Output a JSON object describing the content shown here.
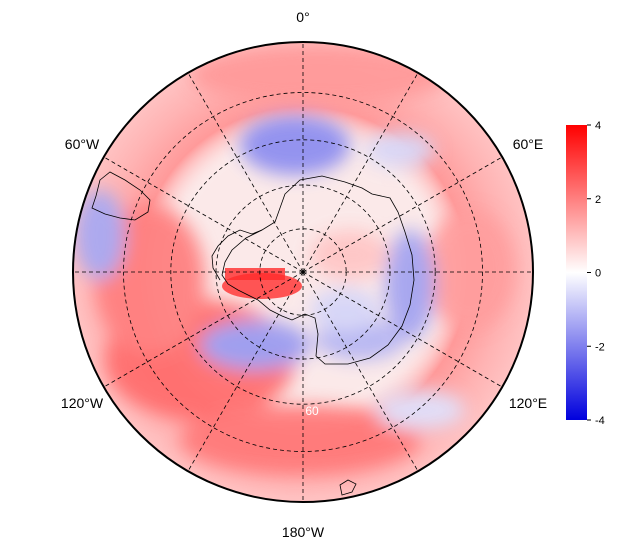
{
  "map": {
    "projection": "south-polar-stereographic",
    "meridian_labels": {
      "top": "0°",
      "upper_left": "60°W",
      "upper_right": "60°E",
      "lower_left": "120°W",
      "lower_right": "120°E",
      "bottom": "180°W"
    },
    "ring_labels": [
      "",
      "60"
    ],
    "meridian_angles_deg": [
      0,
      30,
      60,
      90,
      120,
      150,
      180,
      210,
      240,
      270,
      300,
      330
    ],
    "latitude_rings_deg": [
      -80,
      -70,
      -60,
      -50
    ],
    "outer_latitude_deg": -40,
    "colors": {
      "positive": "#ff0000",
      "negative": "#0000dd",
      "zero": "#ffffff",
      "frame": "#000000",
      "grid": "#000000",
      "coast": "#000000"
    },
    "anomaly_regions": [
      {
        "name": "ring-40-50-pos",
        "value": 1.6
      },
      {
        "name": "pacific-pos",
        "value": 2.5
      },
      {
        "name": "atlantic-neg",
        "value": -1.6
      },
      {
        "name": "ross-neg",
        "value": -1.8
      },
      {
        "name": "east-antarctic-ring-neg",
        "value": -1.4
      },
      {
        "name": "peninsula-pos",
        "value": 3.2
      },
      {
        "name": "indian-pos",
        "value": 1.8
      }
    ]
  },
  "colorbar": {
    "min": -4,
    "max": 4,
    "ticks": [
      "4",
      "2",
      "0",
      "-2",
      "-4"
    ],
    "tick_values": [
      4,
      2,
      0,
      -2,
      -4
    ]
  }
}
